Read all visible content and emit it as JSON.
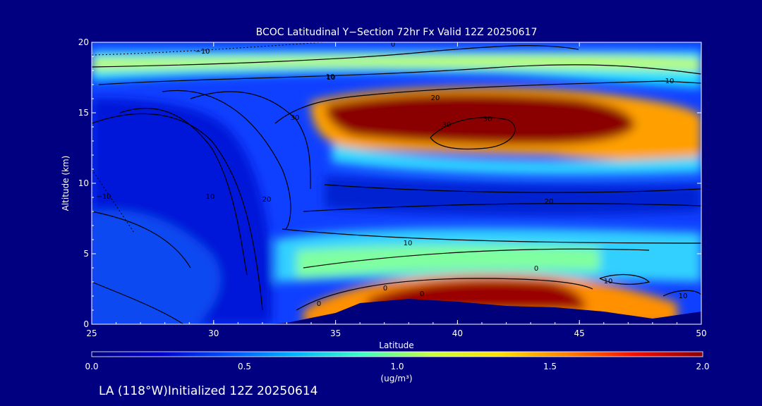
{
  "chart_data": {
    "type": "heatmap",
    "title": "BCOC Latitudinal Y−Section 72hr  Fx Valid 12Z 20250617",
    "xlabel": "Latitude",
    "ylabel": "Altitude (km)",
    "xlim": [
      25,
      50
    ],
    "ylim": [
      0,
      20
    ],
    "x_ticks": [
      "25",
      "30",
      "35",
      "40",
      "45",
      "50"
    ],
    "y_ticks": [
      "0",
      "5",
      "10",
      "15",
      "20"
    ],
    "colorbar": {
      "min": 0.0,
      "max": 2.0,
      "ticks": [
        "0.0",
        "0.5",
        "1.0",
        "1.5",
        "2.0"
      ],
      "unit": "(ug/m³)",
      "colors": [
        "#00007a",
        "#0000cc",
        "#0050ff",
        "#00b4ff",
        "#40ffc0",
        "#c8ff40",
        "#ffe000",
        "#ff8000",
        "#ee1000",
        "#8a0000"
      ]
    },
    "field_features": [
      {
        "lat": [
          35,
          47
        ],
        "alt": [
          12,
          15.6
        ],
        "value": 2.0
      },
      {
        "lat": [
          37,
          46
        ],
        "alt": [
          1.2,
          2.9
        ],
        "value": 2.0
      },
      {
        "lat": [
          25,
          50
        ],
        "alt": [
          17,
          19
        ],
        "value": 0.9
      },
      {
        "lat": [
          34,
          50
        ],
        "alt": [
          10.8,
          11.8
        ],
        "value": 0.8
      },
      {
        "lat": [
          25,
          34
        ],
        "alt": [
          12,
          13
        ],
        "value": 0.25
      }
    ],
    "terrain_top_km": [
      [
        25,
        0
      ],
      [
        32,
        0
      ],
      [
        33,
        0.1
      ],
      [
        35,
        0.8
      ],
      [
        36,
        1.5
      ],
      [
        38,
        1.8
      ],
      [
        40,
        1.6
      ],
      [
        42,
        1.3
      ],
      [
        44,
        1.2
      ],
      [
        46,
        0.9
      ],
      [
        48,
        0.4
      ],
      [
        50,
        0.9
      ]
    ],
    "contour_labels": [
      "−10",
      "0",
      "10",
      "10",
      "20",
      "30",
      "30",
      "30",
      "10",
      "10",
      "20",
      "20",
      "10",
      "10",
      "−10",
      "0",
      "0",
      "0",
      "10",
      "0"
    ]
  },
  "footer": {
    "caption": "LA (118°W)Initialized 12Z 20250614"
  }
}
